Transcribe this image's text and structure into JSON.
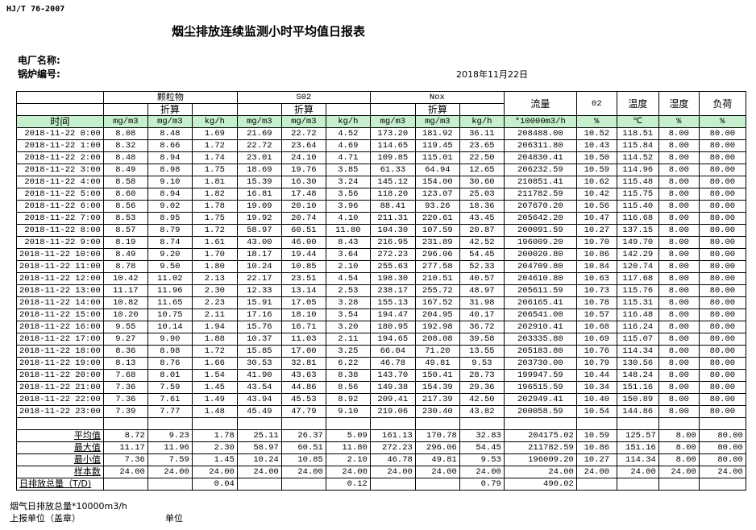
{
  "header": {
    "standard": "HJ/T  76-2007",
    "title": "烟尘排放连续监测小时平均值日报表",
    "plant_label": "电厂名称:",
    "boiler_label": "锅炉编号:",
    "date": "2018年11月22日"
  },
  "table": {
    "groups": [
      "颗粒物",
      "S02",
      "Nox"
    ],
    "converted_label": "折算",
    "single_headers": [
      "流量",
      "02",
      "温度",
      "湿度",
      "负荷"
    ],
    "time_label": "时间",
    "units": [
      "mg/m3",
      "mg/m3",
      "kg/h",
      "mg/m3",
      "mg/m3",
      "kg/h",
      "mg/m3",
      "mg/m3",
      "kg/h",
      "*10000m3/h",
      "%",
      "℃",
      "%",
      "%"
    ],
    "rows": [
      [
        "2018-11-22 0:00",
        "8.08",
        "8.48",
        "1.69",
        "21.69",
        "22.72",
        "4.52",
        "173.20",
        "181.92",
        "36.11",
        "208488.00",
        "10.52",
        "118.51",
        "8.00",
        "80.00"
      ],
      [
        "2018-11-22 1:00",
        "8.32",
        "8.66",
        "1.72",
        "22.72",
        "23.64",
        "4.69",
        "114.65",
        "119.45",
        "23.65",
        "206311.80",
        "10.43",
        "115.84",
        "8.00",
        "80.00"
      ],
      [
        "2018-11-22 2:00",
        "8.48",
        "8.94",
        "1.74",
        "23.01",
        "24.10",
        "4.71",
        "109.85",
        "115.01",
        "22.50",
        "204830.41",
        "10.50",
        "114.52",
        "8.00",
        "80.00"
      ],
      [
        "2018-11-22 3:00",
        "8.49",
        "8.98",
        "1.75",
        "18.69",
        "19.76",
        "3.85",
        "61.33",
        "64.94",
        "12.65",
        "206232.59",
        "10.59",
        "114.96",
        "8.00",
        "80.00"
      ],
      [
        "2018-11-22 4:00",
        "8.58",
        "9.10",
        "1.81",
        "15.39",
        "16.30",
        "3.24",
        "145.12",
        "154.00",
        "30.60",
        "210851.41",
        "10.62",
        "115.48",
        "8.00",
        "80.00"
      ],
      [
        "2018-11-22 5:00",
        "8.60",
        "8.94",
        "1.82",
        "16.81",
        "17.48",
        "3.56",
        "118.20",
        "123.07",
        "25.03",
        "211782.59",
        "10.42",
        "115.75",
        "8.00",
        "80.00"
      ],
      [
        "2018-11-22 6:00",
        "8.56",
        "9.02",
        "1.78",
        "19.09",
        "20.10",
        "3.96",
        "88.41",
        "93.26",
        "18.36",
        "207670.20",
        "10.56",
        "115.40",
        "8.00",
        "80.00"
      ],
      [
        "2018-11-22 7:00",
        "8.53",
        "8.95",
        "1.75",
        "19.92",
        "20.74",
        "4.10",
        "211.31",
        "220.61",
        "43.45",
        "205642.20",
        "10.47",
        "116.68",
        "8.00",
        "80.00"
      ],
      [
        "2018-11-22 8:00",
        "8.57",
        "8.79",
        "1.72",
        "58.97",
        "60.51",
        "11.80",
        "104.30",
        "107.59",
        "20.87",
        "200091.59",
        "10.27",
        "137.15",
        "8.00",
        "80.00"
      ],
      [
        "2018-11-22 9:00",
        "8.19",
        "8.74",
        "1.61",
        "43.00",
        "46.00",
        "8.43",
        "216.95",
        "231.89",
        "42.52",
        "196009.20",
        "10.70",
        "149.70",
        "8.00",
        "80.00"
      ],
      [
        "2018-11-22 10:00",
        "8.49",
        "9.20",
        "1.70",
        "18.17",
        "19.44",
        "3.64",
        "272.23",
        "296.06",
        "54.45",
        "200020.80",
        "10.86",
        "142.29",
        "8.00",
        "80.00"
      ],
      [
        "2018-11-22 11:00",
        "8.78",
        "9.50",
        "1.80",
        "10.24",
        "10.85",
        "2.10",
        "255.63",
        "277.58",
        "52.33",
        "204709.80",
        "10.84",
        "120.74",
        "8.00",
        "80.00"
      ],
      [
        "2018-11-22 12:00",
        "10.42",
        "11.02",
        "2.13",
        "22.17",
        "23.51",
        "4.54",
        "198.30",
        "210.51",
        "40.57",
        "204610.80",
        "10.63",
        "117.68",
        "8.00",
        "80.00"
      ],
      [
        "2018-11-22 13:00",
        "11.17",
        "11.96",
        "2.30",
        "12.33",
        "13.14",
        "2.53",
        "238.17",
        "255.72",
        "48.97",
        "205611.59",
        "10.73",
        "115.76",
        "8.00",
        "80.00"
      ],
      [
        "2018-11-22 14:00",
        "10.82",
        "11.65",
        "2.23",
        "15.91",
        "17.05",
        "3.28",
        "155.13",
        "167.52",
        "31.98",
        "206165.41",
        "10.78",
        "115.31",
        "8.00",
        "80.00"
      ],
      [
        "2018-11-22 15:00",
        "10.20",
        "10.75",
        "2.11",
        "17.16",
        "18.10",
        "3.54",
        "194.47",
        "204.95",
        "40.17",
        "206541.00",
        "10.57",
        "116.48",
        "8.00",
        "80.00"
      ],
      [
        "2018-11-22 16:00",
        "9.55",
        "10.14",
        "1.94",
        "15.76",
        "16.71",
        "3.20",
        "180.95",
        "192.98",
        "36.72",
        "202910.41",
        "10.68",
        "116.24",
        "8.00",
        "80.00"
      ],
      [
        "2018-11-22 17:00",
        "9.27",
        "9.90",
        "1.88",
        "10.37",
        "11.03",
        "2.11",
        "194.65",
        "208.08",
        "39.58",
        "203335.80",
        "10.69",
        "115.07",
        "8.00",
        "80.00"
      ],
      [
        "2018-11-22 18:00",
        "8.36",
        "8.98",
        "1.72",
        "15.85",
        "17.00",
        "3.25",
        "66.04",
        "71.20",
        "13.55",
        "205183.80",
        "10.76",
        "114.34",
        "8.00",
        "80.00"
      ],
      [
        "2018-11-22 19:00",
        "8.13",
        "8.76",
        "1.66",
        "30.53",
        "32.81",
        "6.22",
        "46.78",
        "49.81",
        "9.53",
        "203730.00",
        "10.79",
        "130.56",
        "8.00",
        "80.00"
      ],
      [
        "2018-11-22 20:00",
        "7.68",
        "8.01",
        "1.54",
        "41.90",
        "43.63",
        "8.38",
        "143.70",
        "150.41",
        "28.73",
        "199947.59",
        "10.44",
        "148.24",
        "8.00",
        "80.00"
      ],
      [
        "2018-11-22 21:00",
        "7.36",
        "7.59",
        "1.45",
        "43.54",
        "44.86",
        "8.56",
        "149.38",
        "154.39",
        "29.36",
        "196515.59",
        "10.34",
        "151.16",
        "8.00",
        "80.00"
      ],
      [
        "2018-11-22 22:00",
        "7.36",
        "7.61",
        "1.49",
        "43.94",
        "45.53",
        "8.92",
        "209.41",
        "217.39",
        "42.50",
        "202949.41",
        "10.40",
        "150.89",
        "8.00",
        "80.00"
      ],
      [
        "2018-11-22 23:00",
        "7.39",
        "7.77",
        "1.48",
        "45.49",
        "47.79",
        "9.10",
        "219.06",
        "230.40",
        "43.82",
        "200058.59",
        "10.54",
        "144.86",
        "8.00",
        "80.00"
      ]
    ],
    "stats": [
      [
        "平均值",
        "8.72",
        "9.23",
        "1.78",
        "25.11",
        "26.37",
        "5.09",
        "161.13",
        "170.78",
        "32.83",
        "204175.02",
        "10.59",
        "125.57",
        "8.00",
        "80.00"
      ],
      [
        "最大值",
        "11.17",
        "11.96",
        "2.30",
        "58.97",
        "60.51",
        "11.80",
        "272.23",
        "296.06",
        "54.45",
        "211782.59",
        "10.86",
        "151.16",
        "8.00",
        "80.00"
      ],
      [
        "最小值",
        "7.36",
        "7.59",
        "1.45",
        "10.24",
        "10.85",
        "2.10",
        "46.78",
        "49.81",
        "9.53",
        "196009.20",
        "10.27",
        "114.34",
        "8.00",
        "80.00"
      ],
      [
        "样本数",
        "24.00",
        "24.00",
        "24.00",
        "24.00",
        "24.00",
        "24.00",
        "24.00",
        "24.00",
        "24.00",
        "24.00",
        "24.00",
        "24.00",
        "24.00",
        "24.00"
      ]
    ],
    "daily_total": [
      "日排放总量（T/D)",
      "",
      "",
      "0.04",
      "",
      "",
      "0.12",
      "",
      "",
      "0.79",
      "490.02",
      "",
      "",
      "",
      ""
    ]
  },
  "footer": {
    "flue_gas_total": "烟气日排放总量*10000m3/h",
    "reporting_unit": "上报单位（盖章）",
    "unit": "单位"
  },
  "colors": {
    "unit_row_bg": "#c6efce"
  }
}
